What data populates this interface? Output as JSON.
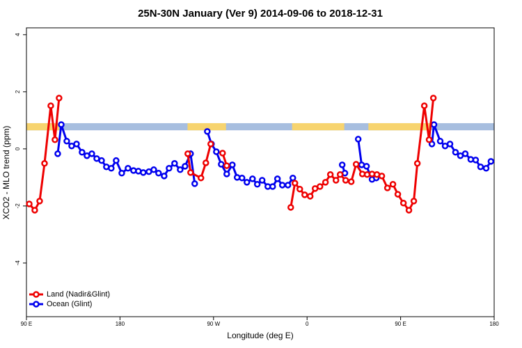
{
  "chart_data": {
    "type": "line",
    "title": "25N-30N January (Ver 9)   2014-09-06 to 2018-12-31",
    "x_label": "Longitude (deg E)",
    "y_label": "XCO2 - MLO trend (ppm)",
    "xlim": [
      90,
      540
    ],
    "ylim": [
      -5.88,
      4.24
    ],
    "xticks": [
      {
        "value": 90,
        "label": "90 E"
      },
      {
        "value": 180,
        "label": "180"
      },
      {
        "value": 270,
        "label": "90 W"
      },
      {
        "value": 360,
        "label": "0"
      },
      {
        "value": 450,
        "label": "90 E"
      },
      {
        "value": 540,
        "label": "180"
      }
    ],
    "yticks": [
      -4,
      -2,
      0,
      2,
      4
    ],
    "legend": "bottom-left",
    "surface_band": {
      "ylim": [
        0.65,
        0.9
      ],
      "ocean_color": "#a7bedf",
      "land_color": "#f7d46f",
      "land": [
        [
          90,
          121.5
        ],
        [
          245,
          282
        ],
        [
          345.6,
          395.8
        ],
        [
          419,
          479.5
        ]
      ]
    },
    "series": [
      {
        "name": "Ocean (Glint)",
        "color": "#0000ee",
        "x": [
          120.1,
          123.5,
          128.8,
          133.5,
          138.2,
          143.5,
          148.2,
          152.9,
          157.6,
          162.3,
          166.9,
          171.6,
          176.3,
          181.7,
          187.7,
          193.0,
          197.7,
          202.4,
          207.8,
          212.5,
          217.1,
          222.5,
          227.2,
          232.5,
          237.9,
          242.6,
          247.9,
          251.9,
          null,
          264.0,
          268.0,
          272.7,
          277.4,
          282.7,
          288.1,
          292.7,
          297.4,
          302.1,
          307.5,
          312.1,
          316.8,
          322.2,
          326.9,
          331.5,
          336.2,
          341.6,
          346.3,
          null,
          393.8,
          396.4,
          null,
          409.2,
          412.5,
          417.2,
          422.5,
          426.6,
          null,
          480.1,
          482.1,
          488.1,
          492.8,
          497.5,
          502.8,
          507.5,
          512.2,
          517.5,
          522.2,
          526.9,
          532.3,
          536.9
        ],
        "values": [
          -0.17,
          0.85,
          0.27,
          0.1,
          0.17,
          -0.12,
          -0.24,
          -0.17,
          -0.34,
          -0.41,
          -0.63,
          -0.68,
          -0.41,
          -0.85,
          -0.68,
          -0.76,
          -0.78,
          -0.83,
          -0.8,
          -0.73,
          -0.85,
          -0.95,
          -0.68,
          -0.51,
          -0.73,
          -0.61,
          -0.17,
          -1.22,
          null,
          0.61,
          0.17,
          -0.1,
          -0.54,
          -0.88,
          -0.56,
          -1.0,
          -1.02,
          -1.17,
          -1.05,
          -1.24,
          -1.1,
          -1.32,
          -1.32,
          -1.05,
          -1.27,
          -1.27,
          -1.02,
          null,
          -0.56,
          -0.85,
          null,
          0.34,
          -0.56,
          -0.61,
          -1.07,
          -1.02,
          null,
          0.17,
          0.85,
          0.27,
          0.1,
          0.17,
          -0.12,
          -0.24,
          -0.17,
          -0.37,
          -0.39,
          -0.63,
          -0.68,
          -0.44
        ]
      },
      {
        "name": "Land (Nadir&Glint)",
        "color": "#ee0000",
        "x": [
          92.7,
          98.0,
          102.7,
          107.4,
          113.4,
          117.4,
          121.4,
          null,
          245.2,
          247.9,
          257.9,
          262.6,
          267.3,
          null,
          278.7,
          282.7,
          null,
          344.3,
          348.3,
          353.0,
          357.7,
          363.0,
          367.7,
          372.4,
          377.7,
          382.4,
          387.8,
          391.8,
          397.1,
          402.5,
          407.2,
          413.2,
          417.8,
          422.5,
          427.2,
          431.9,
          437.3,
          442.6,
          447.3,
          452.7,
          458.0,
          462.7,
          466.1,
          472.8,
          477.4,
          481.5
        ],
        "values": [
          -1.93,
          -2.15,
          -1.83,
          -0.51,
          1.51,
          0.32,
          1.78,
          null,
          -0.17,
          -0.83,
          -1.02,
          -0.49,
          0.17,
          null,
          -0.15,
          -0.59,
          null,
          -2.05,
          -1.2,
          -1.41,
          -1.61,
          -1.66,
          -1.39,
          -1.32,
          -1.17,
          -0.9,
          -1.1,
          -0.9,
          -1.1,
          -1.15,
          -0.54,
          -0.88,
          -0.9,
          -0.88,
          -0.9,
          -0.95,
          -1.37,
          -1.24,
          -1.59,
          -1.9,
          -2.15,
          -1.83,
          -0.51,
          1.51,
          0.32,
          1.78
        ]
      }
    ]
  }
}
